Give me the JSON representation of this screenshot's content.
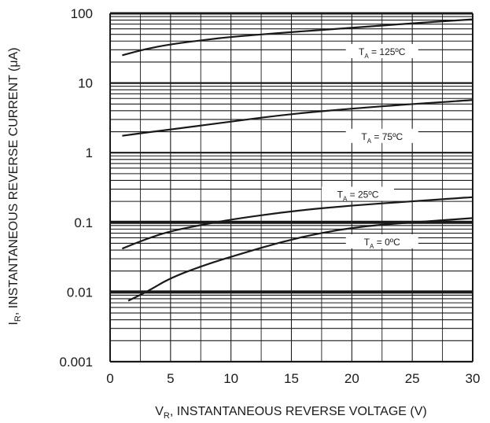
{
  "chart_data": {
    "type": "line",
    "x_axis": {
      "label_main": "V",
      "label_sub": "R",
      "label_rest": ", INSTANTANEOUS REVERSE VOLTAGE (V)",
      "range": [
        0,
        30
      ],
      "ticks": [
        0,
        5,
        10,
        15,
        20,
        25,
        30
      ],
      "tick_labels": [
        "0",
        "5",
        "10",
        "15",
        "20",
        "25",
        "30"
      ]
    },
    "y_axis": {
      "label_main": "I",
      "label_sub": "R",
      "label_rest": ", INSTANTANEOUS REVERSE CURRENT (μA)",
      "scale": "log",
      "range": [
        0.001,
        100
      ],
      "ticks": [
        0.001,
        0.01,
        0.1,
        1,
        10,
        100
      ],
      "tick_labels": [
        "0.001",
        "0.01",
        "0.1",
        "1",
        "10",
        "100"
      ]
    },
    "grid": true,
    "series": [
      {
        "label_main": "T",
        "label_sub": "A",
        "label_rest": " = 125ºC",
        "points": [
          [
            1,
            25
          ],
          [
            3,
            31
          ],
          [
            5,
            36
          ],
          [
            8,
            42
          ],
          [
            10,
            46
          ],
          [
            15,
            54
          ],
          [
            20,
            62
          ],
          [
            25,
            72
          ],
          [
            30,
            82
          ]
        ]
      },
      {
        "label_main": "T",
        "label_sub": "A",
        "label_rest": " = 75ºC",
        "points": [
          [
            1,
            1.75
          ],
          [
            3,
            1.95
          ],
          [
            5,
            2.15
          ],
          [
            10,
            2.8
          ],
          [
            15,
            3.6
          ],
          [
            20,
            4.3
          ],
          [
            25,
            5.0
          ],
          [
            30,
            5.7
          ]
        ]
      },
      {
        "label_main": "T",
        "label_sub": "A",
        "label_rest": " = 25ºC",
        "points": [
          [
            1,
            0.042
          ],
          [
            3,
            0.058
          ],
          [
            5,
            0.075
          ],
          [
            8,
            0.095
          ],
          [
            10,
            0.11
          ],
          [
            15,
            0.145
          ],
          [
            20,
            0.175
          ],
          [
            25,
            0.2
          ],
          [
            30,
            0.23
          ]
        ]
      },
      {
        "label_main": "T",
        "label_sub": "A",
        "label_rest": " = 0ºC",
        "points": [
          [
            1.5,
            0.0075
          ],
          [
            3,
            0.01
          ],
          [
            5,
            0.016
          ],
          [
            8,
            0.025
          ],
          [
            10,
            0.032
          ],
          [
            15,
            0.058
          ],
          [
            20,
            0.085
          ],
          [
            25,
            0.1
          ],
          [
            30,
            0.115
          ]
        ]
      }
    ]
  }
}
